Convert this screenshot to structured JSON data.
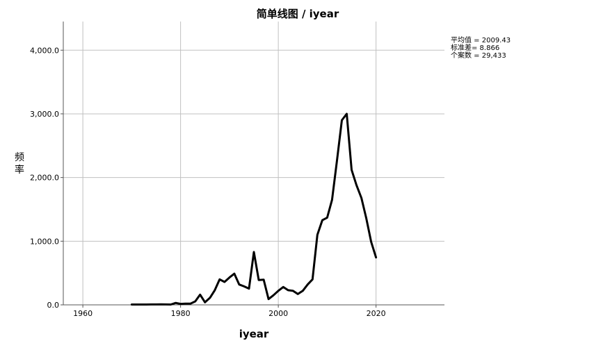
{
  "chart_data": {
    "type": "line",
    "title": "简单线图 /  iyear",
    "xlabel": "iyear",
    "ylabel_chars": [
      "频",
      "率"
    ],
    "xlim": [
      1956,
      2034
    ],
    "ylim": [
      0,
      4450
    ],
    "x_ticks": [
      1960,
      1980,
      2000,
      2020
    ],
    "y_ticks": [
      0,
      1000,
      2000,
      3000,
      4000
    ],
    "y_tick_labels": [
      "0.0",
      "1,000.0",
      "2,000.0",
      "3,000.0",
      "4,000.0"
    ],
    "grid": true,
    "line_color": "#000000",
    "grid_color": "#c0c0c0",
    "series": [
      {
        "x": [
          1970,
          1971,
          1972,
          1973,
          1974,
          1975,
          1976,
          1977,
          1978,
          1979,
          1980,
          1981,
          1982,
          1983,
          1984,
          1985,
          1986,
          1987,
          1988,
          1989,
          1990,
          1991,
          1992,
          1993,
          1994,
          1995,
          1996,
          1997,
          1998,
          1999,
          2000,
          2001,
          2002,
          2003,
          2004,
          2005,
          2006,
          2007,
          2008,
          2009,
          2010,
          2011,
          2012,
          2013,
          2014,
          2015,
          2016,
          2017,
          2018,
          2019,
          2020
        ],
        "y": [
          5,
          5,
          5,
          5,
          7,
          7,
          8,
          6,
          5,
          30,
          15,
          20,
          18,
          55,
          160,
          40,
          110,
          230,
          400,
          360,
          430,
          490,
          320,
          290,
          255,
          830,
          390,
          395,
          90,
          150,
          220,
          280,
          230,
          220,
          170,
          220,
          320,
          400,
          1100,
          1330,
          1370,
          1650,
          2260,
          2900,
          3000,
          2120,
          1880,
          1680,
          1360,
          990,
          745
        ]
      }
    ]
  },
  "stats": {
    "mean": "平均值 = 2009.43",
    "sd": "标准差= 8.866",
    "n": "个案数 = 29,433"
  }
}
